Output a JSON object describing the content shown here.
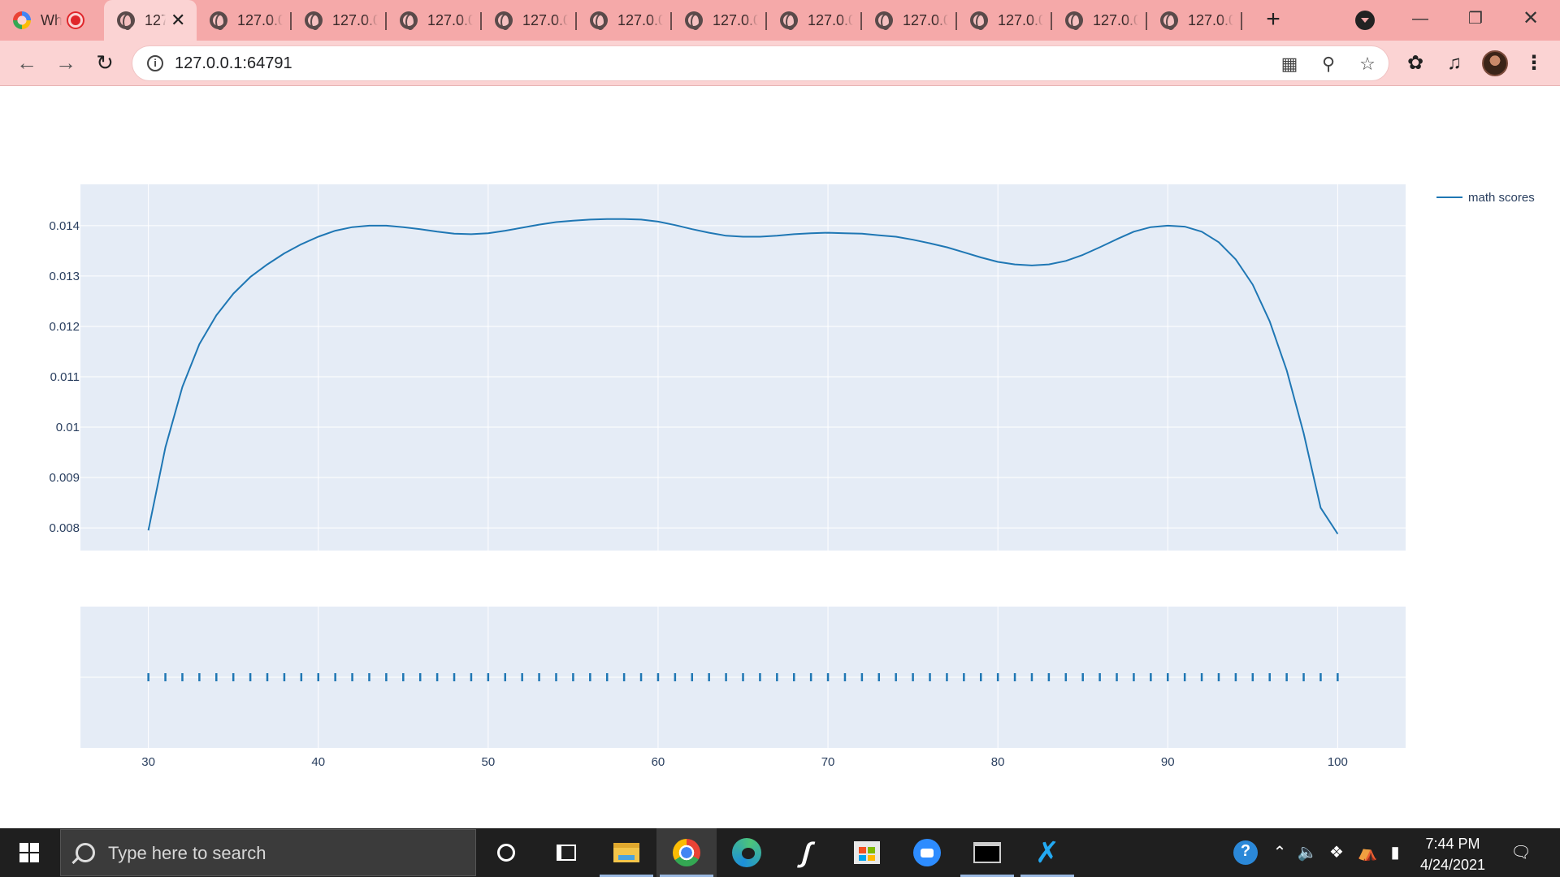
{
  "browser": {
    "tabs": [
      {
        "title": "Wh",
        "favicon": "what-icon",
        "recording": true
      },
      {
        "title": "127",
        "favicon": "globe-icon",
        "active": true
      },
      {
        "title": "127.0.0",
        "favicon": "globe-icon"
      },
      {
        "title": "127.0.0",
        "favicon": "globe-icon"
      },
      {
        "title": "127.0.0",
        "favicon": "globe-icon"
      },
      {
        "title": "127.0.0",
        "favicon": "globe-icon"
      },
      {
        "title": "127.0.0",
        "favicon": "globe-icon"
      },
      {
        "title": "127.0.0",
        "favicon": "globe-icon"
      },
      {
        "title": "127.0.0",
        "favicon": "globe-icon"
      },
      {
        "title": "127.0.0",
        "favicon": "globe-icon"
      },
      {
        "title": "127.0.0",
        "favicon": "globe-icon"
      },
      {
        "title": "127.0.0",
        "favicon": "globe-icon"
      },
      {
        "title": "127.0.0",
        "favicon": "globe-icon"
      }
    ],
    "address": "127.0.0.1:64791",
    "theme": {
      "tabstrip": "#f5a9a9",
      "toolbar": "#fbd3d3"
    }
  },
  "chart_data": {
    "type": "line",
    "subplots": [
      "density",
      "rug"
    ],
    "series": [
      {
        "name": "math scores",
        "color": "#1f77b4",
        "x": [
          30,
          31,
          32,
          33,
          34,
          35,
          36,
          37,
          38,
          39,
          40,
          41,
          42,
          43,
          44,
          45,
          46,
          47,
          48,
          49,
          50,
          51,
          52,
          53,
          54,
          55,
          56,
          57,
          58,
          59,
          60,
          61,
          62,
          63,
          64,
          65,
          66,
          67,
          68,
          69,
          70,
          71,
          72,
          73,
          74,
          75,
          76,
          77,
          78,
          79,
          80,
          81,
          82,
          83,
          84,
          85,
          86,
          87,
          88,
          89,
          90,
          91,
          92,
          93,
          94,
          95,
          96,
          97,
          98,
          99,
          100
        ],
        "y": [
          0.00795,
          0.0096,
          0.0108,
          0.01165,
          0.01222,
          0.01265,
          0.01298,
          0.01323,
          0.01345,
          0.01363,
          0.01378,
          0.0139,
          0.01397,
          0.014,
          0.014,
          0.01397,
          0.01393,
          0.01388,
          0.01384,
          0.01383,
          0.01385,
          0.0139,
          0.01396,
          0.01402,
          0.01407,
          0.0141,
          0.01412,
          0.01413,
          0.01413,
          0.01412,
          0.01408,
          0.01401,
          0.01393,
          0.01386,
          0.0138,
          0.01378,
          0.01378,
          0.0138,
          0.01383,
          0.01385,
          0.01386,
          0.01385,
          0.01384,
          0.01381,
          0.01378,
          0.01372,
          0.01365,
          0.01357,
          0.01347,
          0.01337,
          0.01328,
          0.01323,
          0.01321,
          0.01323,
          0.0133,
          0.01342,
          0.01357,
          0.01373,
          0.01388,
          0.01397,
          0.014,
          0.01398,
          0.01388,
          0.01367,
          0.01333,
          0.01283,
          0.0121,
          0.01113,
          0.00988,
          0.0084,
          0.00788
        ]
      }
    ],
    "rug_x": [
      30,
      31,
      32,
      33,
      34,
      35,
      36,
      37,
      38,
      39,
      40,
      41,
      42,
      43,
      44,
      45,
      46,
      47,
      48,
      49,
      50,
      51,
      52,
      53,
      54,
      55,
      56,
      57,
      58,
      59,
      60,
      61,
      62,
      63,
      64,
      65,
      66,
      67,
      68,
      69,
      70,
      71,
      72,
      73,
      74,
      75,
      76,
      77,
      78,
      79,
      80,
      81,
      82,
      83,
      84,
      85,
      86,
      87,
      88,
      89,
      90,
      91,
      92,
      93,
      94,
      95,
      96,
      97,
      98,
      99,
      100
    ],
    "xlim": [
      26,
      104
    ],
    "ylim": [
      0.00755,
      0.01482
    ],
    "xticks": [
      "30",
      "40",
      "50",
      "60",
      "70",
      "80",
      "90",
      "100"
    ],
    "xtick_values": [
      30,
      40,
      50,
      60,
      70,
      80,
      90,
      100
    ],
    "yticks": [
      "0.008",
      "0.009",
      "0.01",
      "0.011",
      "0.012",
      "0.013",
      "0.014"
    ],
    "ytick_values": [
      0.008,
      0.009,
      0.01,
      0.011,
      0.012,
      0.013,
      0.014
    ],
    "legend": {
      "position": "top-right",
      "entries": [
        "math scores"
      ]
    },
    "grid": true,
    "plot_bg": "#e5ecf6",
    "grid_color": "#ffffff",
    "tick_color": "#2a3f5f"
  },
  "taskbar": {
    "search_placeholder": "Type here to search",
    "time": "7:44 PM",
    "date": "4/24/2021",
    "apps": [
      "cortana-icon",
      "task-view-icon",
      "file-explorer-icon",
      "chrome-icon",
      "edge-icon",
      "dev-tool-icon",
      "store-icon",
      "zoom-icon",
      "terminal-icon",
      "vscode-icon"
    ]
  }
}
